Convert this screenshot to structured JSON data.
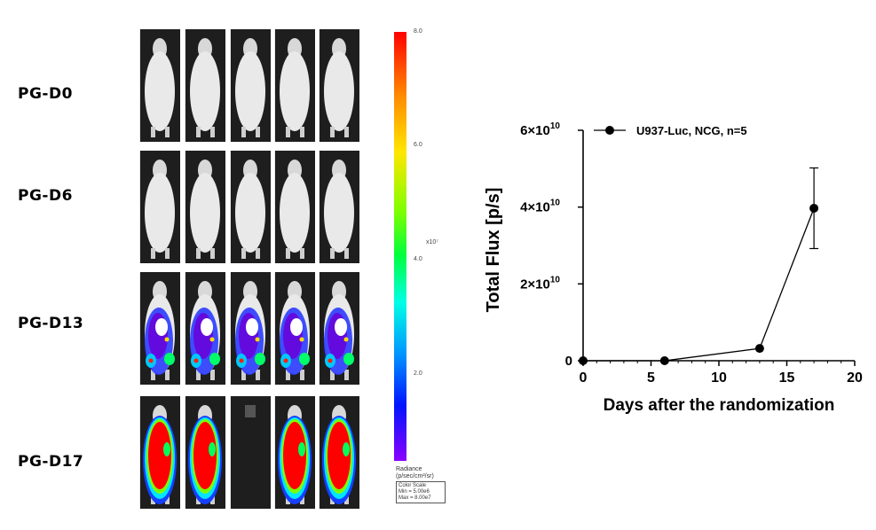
{
  "imaging": {
    "rows": [
      {
        "label": "PG-D0"
      },
      {
        "label": "PG-D6"
      },
      {
        "label": "PG-D13"
      },
      {
        "label": "PG-D17"
      }
    ],
    "colorbar": {
      "ticks": [
        "8.0",
        "6.0",
        "4.0",
        "2.0"
      ],
      "exponent": "x10⁷",
      "title_line1": "Radiance",
      "title_line2": "(p/sec/cm²/sr)",
      "scale_line1": "Color Scale",
      "scale_line2": "Min = 5.00e6",
      "scale_line3": "Max = 8.00e7",
      "gradient": [
        "#ff0000",
        "#ff8c00",
        "#ffe600",
        "#7dff00",
        "#00ff3c",
        "#00ffe6",
        "#0096ff",
        "#0014ff",
        "#8a00ff"
      ]
    }
  },
  "chart_data": {
    "type": "line",
    "xlabel": "Days after the randomization",
    "ylabel": "Total Flux [p/s]",
    "xlim": [
      0,
      20
    ],
    "ylim": [
      0,
      60000000000.0
    ],
    "xticks": [
      0,
      5,
      10,
      15,
      20
    ],
    "yticks": [
      {
        "value": 0,
        "label": "0"
      },
      {
        "value": 20000000000.0,
        "label": "2×10",
        "exp": "10"
      },
      {
        "value": 40000000000.0,
        "label": "4×10",
        "exp": "10"
      },
      {
        "value": 60000000000.0,
        "label": "6×10",
        "exp": "10"
      }
    ],
    "legend_position": "top-left",
    "series": [
      {
        "name": "U937-Luc, NCG, n=5",
        "color": "#000000",
        "x": [
          0,
          6,
          13,
          17
        ],
        "y": [
          0,
          0,
          3200000000.0,
          39700000000.0
        ],
        "error": [
          0,
          0,
          0,
          10500000000.0
        ]
      }
    ]
  }
}
